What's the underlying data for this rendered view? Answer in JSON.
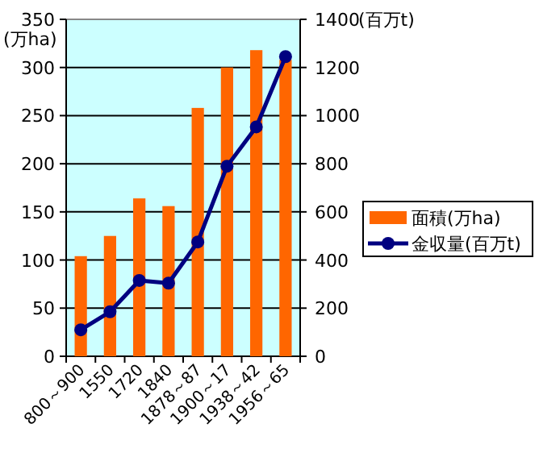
{
  "chart_data": {
    "type": "bar",
    "categories": [
      "800～900",
      "1550",
      "1720",
      "1840",
      "1878～87",
      "1900～17",
      "1938～42",
      "1956～65"
    ],
    "series": [
      {
        "name": "面積(万ha)",
        "color": "#ff6600",
        "values": [
          104,
          125,
          164,
          156,
          258,
          300,
          318,
          308
        ]
      },
      {
        "name": "金収量(百万t)",
        "type": "line",
        "axis": "y2",
        "color": "#000080",
        "marker": "circle",
        "values": [
          110,
          185,
          315,
          304,
          475,
          790,
          953,
          1245
        ]
      }
    ],
    "ylabel": "(万ha)",
    "y2label": "(百万t)",
    "ylim": [
      0,
      350
    ],
    "yticks": [
      0,
      50,
      100,
      150,
      200,
      250,
      300,
      350
    ],
    "y2lim": [
      0,
      1400
    ],
    "y2ticks": [
      0,
      200,
      400,
      600,
      800,
      1000,
      1200,
      1400
    ],
    "grid": "y",
    "legend": "right"
  }
}
